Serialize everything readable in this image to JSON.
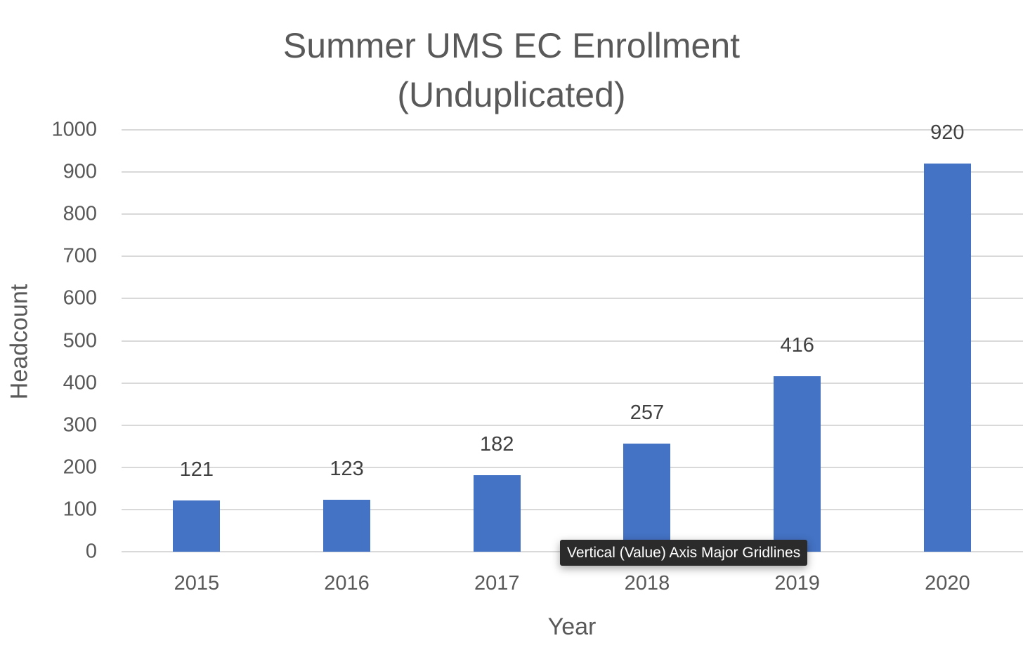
{
  "chart_data": {
    "type": "bar",
    "title": "Summer UMS EC Enrollment (Unduplicated)",
    "title_lines": [
      "Summer UMS EC Enrollment",
      "(Unduplicated)"
    ],
    "xlabel": "Year",
    "ylabel": "Headcount",
    "categories": [
      "2015",
      "2016",
      "2017",
      "2018",
      "2019",
      "2020"
    ],
    "values": [
      121,
      123,
      182,
      257,
      416,
      920
    ],
    "ylim": [
      0,
      1000
    ],
    "yticks": [
      "0",
      "100",
      "200",
      "300",
      "400",
      "500",
      "600",
      "700",
      "800",
      "900",
      "1000"
    ],
    "grid": true,
    "legend": null,
    "bar_color": "#4472c4",
    "data_labels": [
      "121",
      "123",
      "182",
      "257",
      "416",
      "920"
    ]
  },
  "tooltip": {
    "text": "Vertical (Value) Axis Major Gridlines"
  }
}
